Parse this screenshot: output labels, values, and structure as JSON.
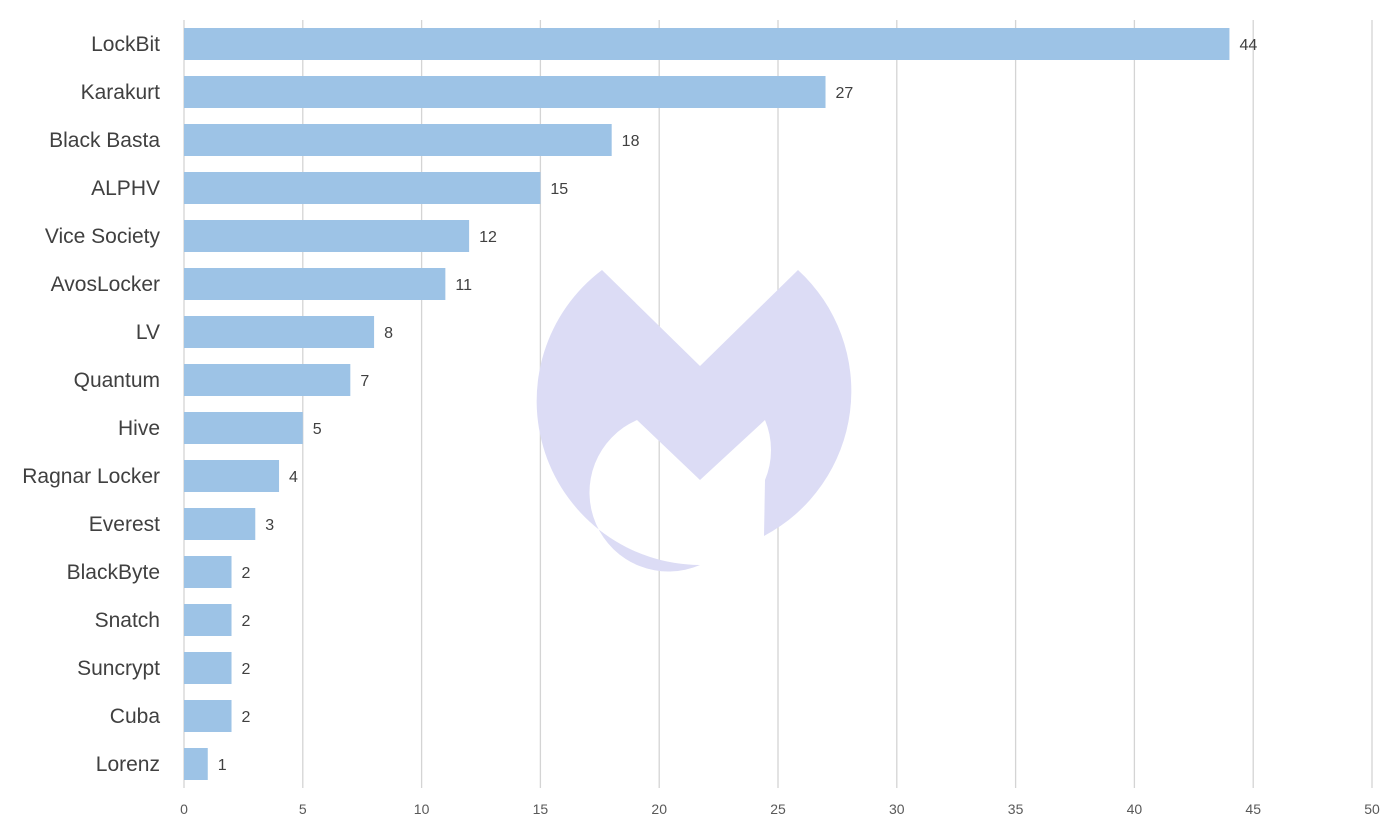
{
  "chart_data": {
    "type": "bar",
    "orientation": "horizontal",
    "categories": [
      "LockBit",
      "Karakurt",
      "Black Basta",
      "ALPHV",
      "Vice Society",
      "AvosLocker",
      "LV",
      "Quantum",
      "Hive",
      "Ragnar Locker",
      "Everest",
      "BlackByte",
      "Snatch",
      "Suncrypt",
      "Cuba",
      "Lorenz"
    ],
    "values": [
      44,
      27,
      18,
      15,
      12,
      11,
      8,
      7,
      5,
      4,
      3,
      2,
      2,
      2,
      2,
      1
    ],
    "xlim": [
      0,
      50
    ],
    "xticks": [
      0,
      5,
      10,
      15,
      20,
      25,
      30,
      35,
      40,
      45,
      50
    ],
    "title": "",
    "xlabel": "",
    "ylabel": "",
    "grid": "vertical",
    "legend": "none",
    "data_labels": true,
    "colors": {
      "bar": "#9dc3e6",
      "grid": "#d4d4d4",
      "watermark": "#dcdcf5"
    },
    "watermark_icon": "malwarebytes-logo-icon"
  }
}
